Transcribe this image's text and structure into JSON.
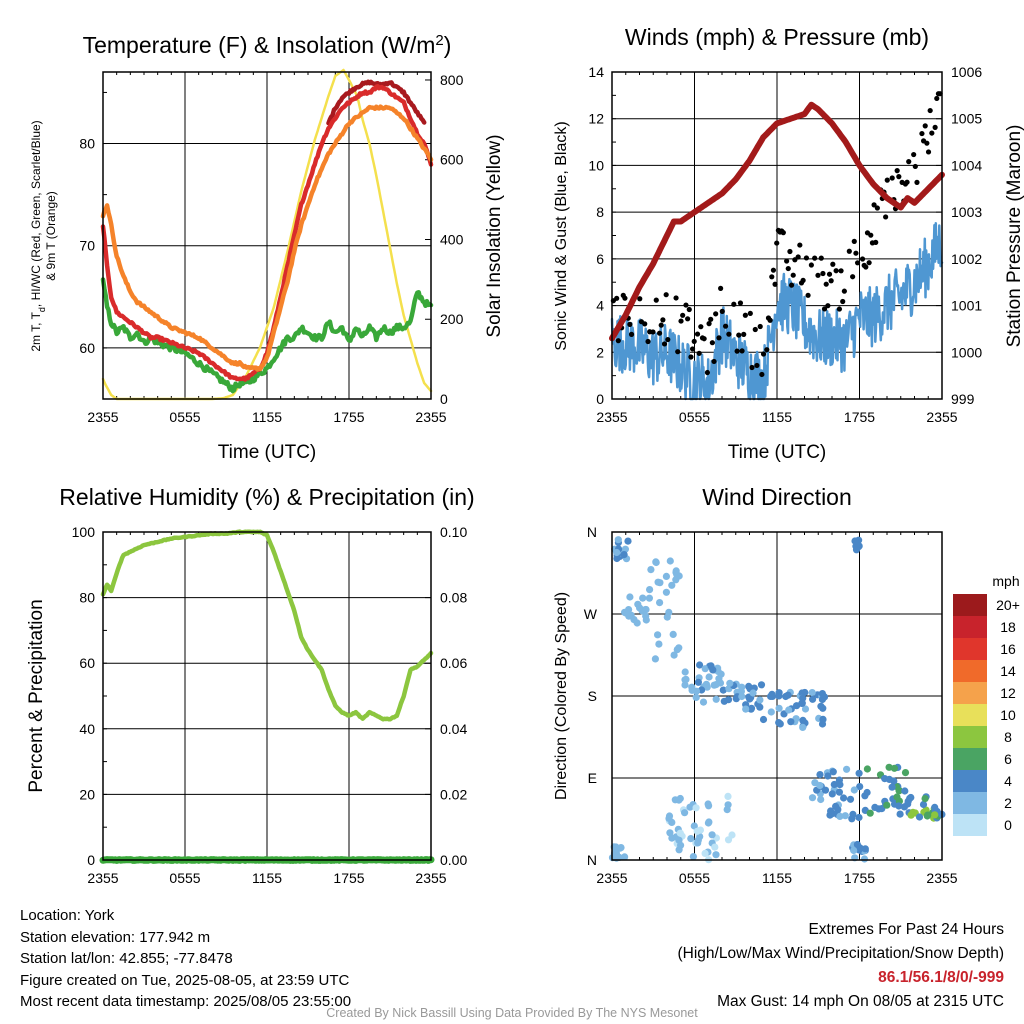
{
  "chart_data": [
    {
      "type": "line",
      "title": "Temperature (F) & Insolation (W/m",
      "title_sup": "2",
      "title_end": ")",
      "xlabel": "Time (UTC)",
      "ylabel_left": [
        "2m T, T",
        "d",
        ", HI/WC (Red, Green, Scarlet/Blue)",
        "& 9m T (Orange)"
      ],
      "ylabel_right": "Solar Insolation (Yellow)",
      "x_ticks": [
        "2355",
        "0555",
        "1155",
        "1755",
        "2355"
      ],
      "x_range_hours": [
        0,
        24
      ],
      "ylim_left": [
        55,
        87
      ],
      "yticks_left": [
        60,
        70,
        80
      ],
      "ylim_right": [
        0,
        820
      ],
      "yticks_right": [
        0,
        200,
        400,
        600,
        800
      ],
      "series": [
        {
          "color": "#f4e04d",
          "axis": "right",
          "x": [
            0,
            0.2,
            0.6,
            1,
            2,
            4,
            6,
            8,
            8.8,
            9.5,
            10.5,
            11.5,
            12.5,
            13.5,
            14.5,
            15.5,
            16.5,
            17,
            17.6,
            18,
            18.6,
            19,
            19.5,
            20,
            20.5,
            21,
            21.5,
            22,
            22.5,
            23,
            23.5,
            24
          ],
          "values": [
            50,
            35,
            10,
            0,
            0,
            0,
            0,
            0,
            2,
            10,
            60,
            130,
            230,
            370,
            520,
            650,
            760,
            810,
            825,
            800,
            760,
            700,
            640,
            560,
            470,
            380,
            290,
            210,
            150,
            90,
            40,
            20
          ]
        },
        {
          "color": "#39a839",
          "x": [
            0,
            0.3,
            0.6,
            1,
            1.5,
            2,
            2.5,
            3,
            3.5,
            4,
            5,
            6,
            7,
            8,
            9,
            9.5,
            10,
            10.5,
            11,
            11.5,
            12,
            12.5,
            13,
            13.5,
            14,
            14.5,
            15,
            15.5,
            16,
            16.5,
            17,
            17.5,
            18,
            18.5,
            19,
            19.5,
            20,
            20.5,
            21,
            21.5,
            22,
            22.5,
            23,
            23.5,
            24
          ],
          "values": [
            66.5,
            64,
            62.5,
            61.5,
            62,
            61,
            61.5,
            60.5,
            61,
            60.5,
            60,
            59.5,
            58.5,
            57.5,
            56.5,
            56,
            56.5,
            56.5,
            57,
            57.5,
            58,
            59,
            60,
            61,
            61,
            62,
            61.5,
            61,
            61,
            62.5,
            61.5,
            62,
            60.5,
            62,
            61,
            62,
            61,
            62,
            61.5,
            62,
            62,
            62.5,
            65.5,
            64.5,
            64
          ]
        },
        {
          "color": "#a8191e",
          "x": [
            16.5,
            17,
            17.5,
            18,
            18.5,
            19,
            19.5,
            20,
            20.5,
            21,
            21.5,
            22,
            22.5,
            23,
            23.5
          ],
          "values": [
            82,
            83.5,
            84.5,
            85,
            85.5,
            85.8,
            86,
            85.8,
            85.8,
            86,
            85.5,
            85,
            84,
            83,
            82
          ]
        },
        {
          "color": "#d92b2b",
          "x": [
            0,
            0.3,
            0.6,
            1,
            1.5,
            2,
            2.5,
            3,
            3.5,
            4,
            5,
            6,
            7,
            8,
            9,
            9.5,
            10,
            10.5,
            11,
            11.5,
            12,
            12.5,
            13,
            13.5,
            14,
            14.5,
            15,
            15.5,
            16,
            16.5,
            17,
            17.5,
            18,
            18.5,
            19,
            19.5,
            20,
            20.5,
            21,
            21.5,
            22,
            22.5,
            23,
            23.5,
            24
          ],
          "values": [
            72,
            68,
            65,
            63.5,
            63,
            62.5,
            62,
            61.5,
            61,
            61,
            60.5,
            60,
            59.5,
            58.5,
            57.5,
            57,
            57,
            57,
            57.5,
            58,
            59.5,
            62,
            65,
            68,
            71,
            74,
            76,
            78,
            80,
            81.5,
            82.5,
            83.5,
            84,
            84.5,
            85,
            85,
            85.5,
            85.5,
            85,
            84.5,
            84,
            82.5,
            81,
            80,
            78
          ]
        },
        {
          "color": "#f5832a",
          "x": [
            0,
            0.3,
            0.6,
            1,
            1.5,
            2,
            2.5,
            3,
            3.5,
            4,
            5,
            6,
            7,
            8,
            9,
            9.5,
            10,
            10.5,
            11,
            11.5,
            12,
            12.5,
            13,
            13.5,
            14,
            14.5,
            15,
            15.5,
            16,
            16.5,
            17,
            17.5,
            18,
            18.5,
            19,
            19.5,
            20,
            20.5,
            21,
            21.5,
            22,
            22.5,
            23,
            23.5,
            24
          ],
          "values": [
            73,
            74,
            72,
            69,
            67,
            65.5,
            64.5,
            64,
            63.5,
            63,
            62,
            61.5,
            61,
            60,
            59,
            58.5,
            58.5,
            58,
            58,
            58,
            59,
            61.5,
            64,
            66.5,
            69.5,
            72,
            74,
            76,
            77.5,
            79,
            80,
            81,
            82,
            82.5,
            83,
            83.5,
            83.5,
            83.5,
            83.5,
            83,
            82.5,
            81.5,
            80.5,
            79.5,
            78.5
          ]
        }
      ]
    },
    {
      "type": "line",
      "title": "Winds (mph) & Pressure (mb)",
      "xlabel": "Time (UTC)",
      "ylabel_left": "Sonic Wind & Gust (Blue, Black)",
      "ylabel_right": "Station Pressure (Maroon)",
      "x_ticks": [
        "2355",
        "0555",
        "1155",
        "1755",
        "2355"
      ],
      "x_range_hours": [
        0,
        24
      ],
      "ylim_left": [
        0,
        14
      ],
      "yticks_left": [
        0,
        2,
        4,
        6,
        8,
        10,
        12,
        14
      ],
      "ylim_right": [
        999,
        1006
      ],
      "yticks_right": [
        999,
        1000,
        1001,
        1002,
        1003,
        1004,
        1005,
        1006
      ],
      "series": [
        {
          "name": "",
          "color": "#4f97d2",
          "x": [
            0,
            1,
            2,
            3,
            4,
            5,
            6,
            7,
            8,
            9,
            10,
            11,
            12,
            13,
            14,
            15,
            16,
            17,
            18,
            19,
            20,
            21,
            22,
            23,
            24
          ],
          "values": [
            2.5,
            2.4,
            2.2,
            1.8,
            2.0,
            1.4,
            0.9,
            0.6,
            2.8,
            1.8,
            1.2,
            0.8,
            4.2,
            4.0,
            3.2,
            2.6,
            2.6,
            2.4,
            3.5,
            3.5,
            4.0,
            4.4,
            5.0,
            5.8,
            6.8
          ]
        },
        {
          "name": "",
          "color": "#000000",
          "style": "dots",
          "x": [
            0,
            1,
            2,
            3,
            4,
            5,
            6,
            7,
            8,
            9,
            10,
            11,
            12,
            13,
            14,
            15,
            16,
            17,
            18,
            19,
            20,
            21,
            22,
            23,
            24
          ],
          "values": [
            3.3,
            3.6,
            3.7,
            3.2,
            3.6,
            3.0,
            2.6,
            2.0,
            3.8,
            3.2,
            2.6,
            2.2,
            6.2,
            5.8,
            5.4,
            5.0,
            4.9,
            5.0,
            6.5,
            7.2,
            8.5,
            8.8,
            9.8,
            11.2,
            12.5
          ]
        },
        {
          "name": "",
          "color": "#a31a1a",
          "axis": "right",
          "x": [
            0,
            1,
            2,
            3,
            4,
            4.5,
            5,
            6,
            7,
            8,
            9,
            10,
            11,
            12,
            13,
            14,
            14.5,
            15,
            16,
            17,
            18,
            19,
            20,
            21,
            21.5,
            22,
            23,
            24
          ],
          "values": [
            1000.3,
            1000.8,
            1001.4,
            1001.9,
            1002.5,
            1002.8,
            1002.8,
            1003.0,
            1003.2,
            1003.4,
            1003.7,
            1004.1,
            1004.6,
            1004.9,
            1005.0,
            1005.1,
            1005.3,
            1005.2,
            1004.9,
            1004.5,
            1004.0,
            1003.6,
            1003.3,
            1003.1,
            1003.3,
            1003.2,
            1003.5,
            1003.8
          ]
        }
      ]
    },
    {
      "type": "line",
      "title": "Relative Humidity (%) & Precipitation (in)",
      "xlabel": "",
      "ylabel_left": "Percent & Precipitation",
      "x_ticks": [
        "2355",
        "0555",
        "1155",
        "1755",
        "2355"
      ],
      "x_range_hours": [
        0,
        24
      ],
      "ylim_left": [
        0,
        100
      ],
      "yticks_left": [
        0,
        20,
        40,
        60,
        80,
        100
      ],
      "ylim_right": [
        0,
        0.1
      ],
      "yticks_right": [
        "0.00",
        "0.02",
        "0.04",
        "0.06",
        "0.08",
        "0.10"
      ],
      "series": [
        {
          "color": "#8cc63f",
          "x": [
            0,
            0.3,
            0.6,
            0.9,
            1.2,
            1.5,
            2,
            3,
            4,
            5,
            6,
            7,
            8,
            9,
            10,
            11,
            11.5,
            12,
            12.5,
            13,
            14,
            14.5,
            15,
            15.5,
            16,
            16.5,
            17,
            17.5,
            18,
            18.5,
            19,
            19.5,
            20,
            20.5,
            21,
            21.5,
            22,
            22.5,
            23,
            23.5,
            24
          ],
          "values": [
            81,
            84,
            82,
            86,
            90,
            93,
            94,
            96,
            97,
            98,
            98.5,
            99,
            99.5,
            99.5,
            100,
            100,
            100,
            99,
            94,
            88,
            76,
            68,
            64,
            61,
            58,
            52,
            47,
            45,
            44,
            45,
            43,
            45,
            44,
            43,
            43,
            44,
            50,
            58,
            59,
            61,
            63
          ]
        },
        {
          "color": "#39a839",
          "x": [
            0,
            24
          ],
          "values": [
            0,
            0
          ]
        }
      ]
    },
    {
      "type": "scatter",
      "title": "Wind Direction",
      "xlabel": "",
      "ylabel_left": "Direction (Colored By Speed)",
      "x_ticks": [
        "2355",
        "0555",
        "1155",
        "1755",
        "2355"
      ],
      "x_range_hours": [
        0,
        24
      ],
      "y_categories": [
        "N",
        "E",
        "S",
        "W",
        "N"
      ],
      "ylim_degrees": [
        0,
        360
      ],
      "legend": {
        "title": "mph",
        "placement": "right",
        "labels": [
          "20+",
          "18",
          "16",
          "14",
          "12",
          "10",
          "8",
          "6",
          "4",
          "2",
          "0"
        ],
        "colors": [
          "#9c1a1c",
          "#c8232c",
          "#e0362c",
          "#f06a2a",
          "#f5a24b",
          "#e8e05a",
          "#8cc63f",
          "#4aa463",
          "#4a87c7",
          "#7fb8e3",
          "#bde3f6"
        ]
      },
      "clusters": [
        {
          "x": [
            0.1,
            1.2
          ],
          "y": [
            355,
            330
          ],
          "speed": [
            1,
            4
          ]
        },
        {
          "x": [
            0.8,
            2.5
          ],
          "y": [
            260,
            290
          ],
          "speed": [
            1,
            3
          ]
        },
        {
          "x": [
            2.5,
            5.0
          ],
          "y": [
            210,
            330
          ],
          "speed": [
            1,
            3
          ]
        },
        {
          "x": [
            5.0,
            8.0
          ],
          "y": [
            170,
            215
          ],
          "speed": [
            1,
            4
          ]
        },
        {
          "x": [
            8.0,
            11.0
          ],
          "y": [
            165,
            195
          ],
          "speed": [
            2,
            5
          ]
        },
        {
          "x": [
            11.0,
            15.5
          ],
          "y": [
            145,
            185
          ],
          "speed": [
            2,
            5
          ]
        },
        {
          "x": [
            14.5,
            18.5
          ],
          "y": [
            45,
            100
          ],
          "speed": [
            2,
            5
          ]
        },
        {
          "x": [
            18.5,
            21.5
          ],
          "y": [
            45,
            105
          ],
          "speed": [
            3,
            7
          ]
        },
        {
          "x": [
            21.5,
            24.0
          ],
          "y": [
            45,
            70
          ],
          "speed": [
            4,
            8
          ]
        },
        {
          "x": [
            0.0,
            1.0
          ],
          "y": [
            0,
            15
          ],
          "speed": [
            1,
            3
          ]
        },
        {
          "x": [
            4.0,
            9.0
          ],
          "y": [
            0,
            70
          ],
          "speed": [
            0,
            3
          ]
        },
        {
          "x": [
            17.5,
            18.5
          ],
          "y": [
            0,
            20
          ],
          "speed": [
            2,
            5
          ]
        },
        {
          "x": [
            17.5,
            18.0
          ],
          "y": [
            340,
            355
          ],
          "speed": [
            3,
            5
          ]
        }
      ]
    }
  ],
  "footer": {
    "location": "Location: York",
    "elevation": "Station elevation: 177.942 m",
    "latlon": "Station lat/lon: 42.855; -77.8478",
    "created": "Figure created on Tue, 2025-08-05, at 23:59 UTC",
    "recent": "Most recent data timestamp: 2025/08/05 23:55:00"
  },
  "extremes": {
    "title": "Extremes For Past 24 Hours",
    "subtitle": "(High/Low/Max Wind/Precipitation/Snow Depth)",
    "values": "86.1/56.1/8/0/-999",
    "gust": "Max Gust: 14 mph On 08/05 at 2315 UTC"
  },
  "credit": "Created By Nick Bassill Using Data Provided By The NYS Mesonet"
}
